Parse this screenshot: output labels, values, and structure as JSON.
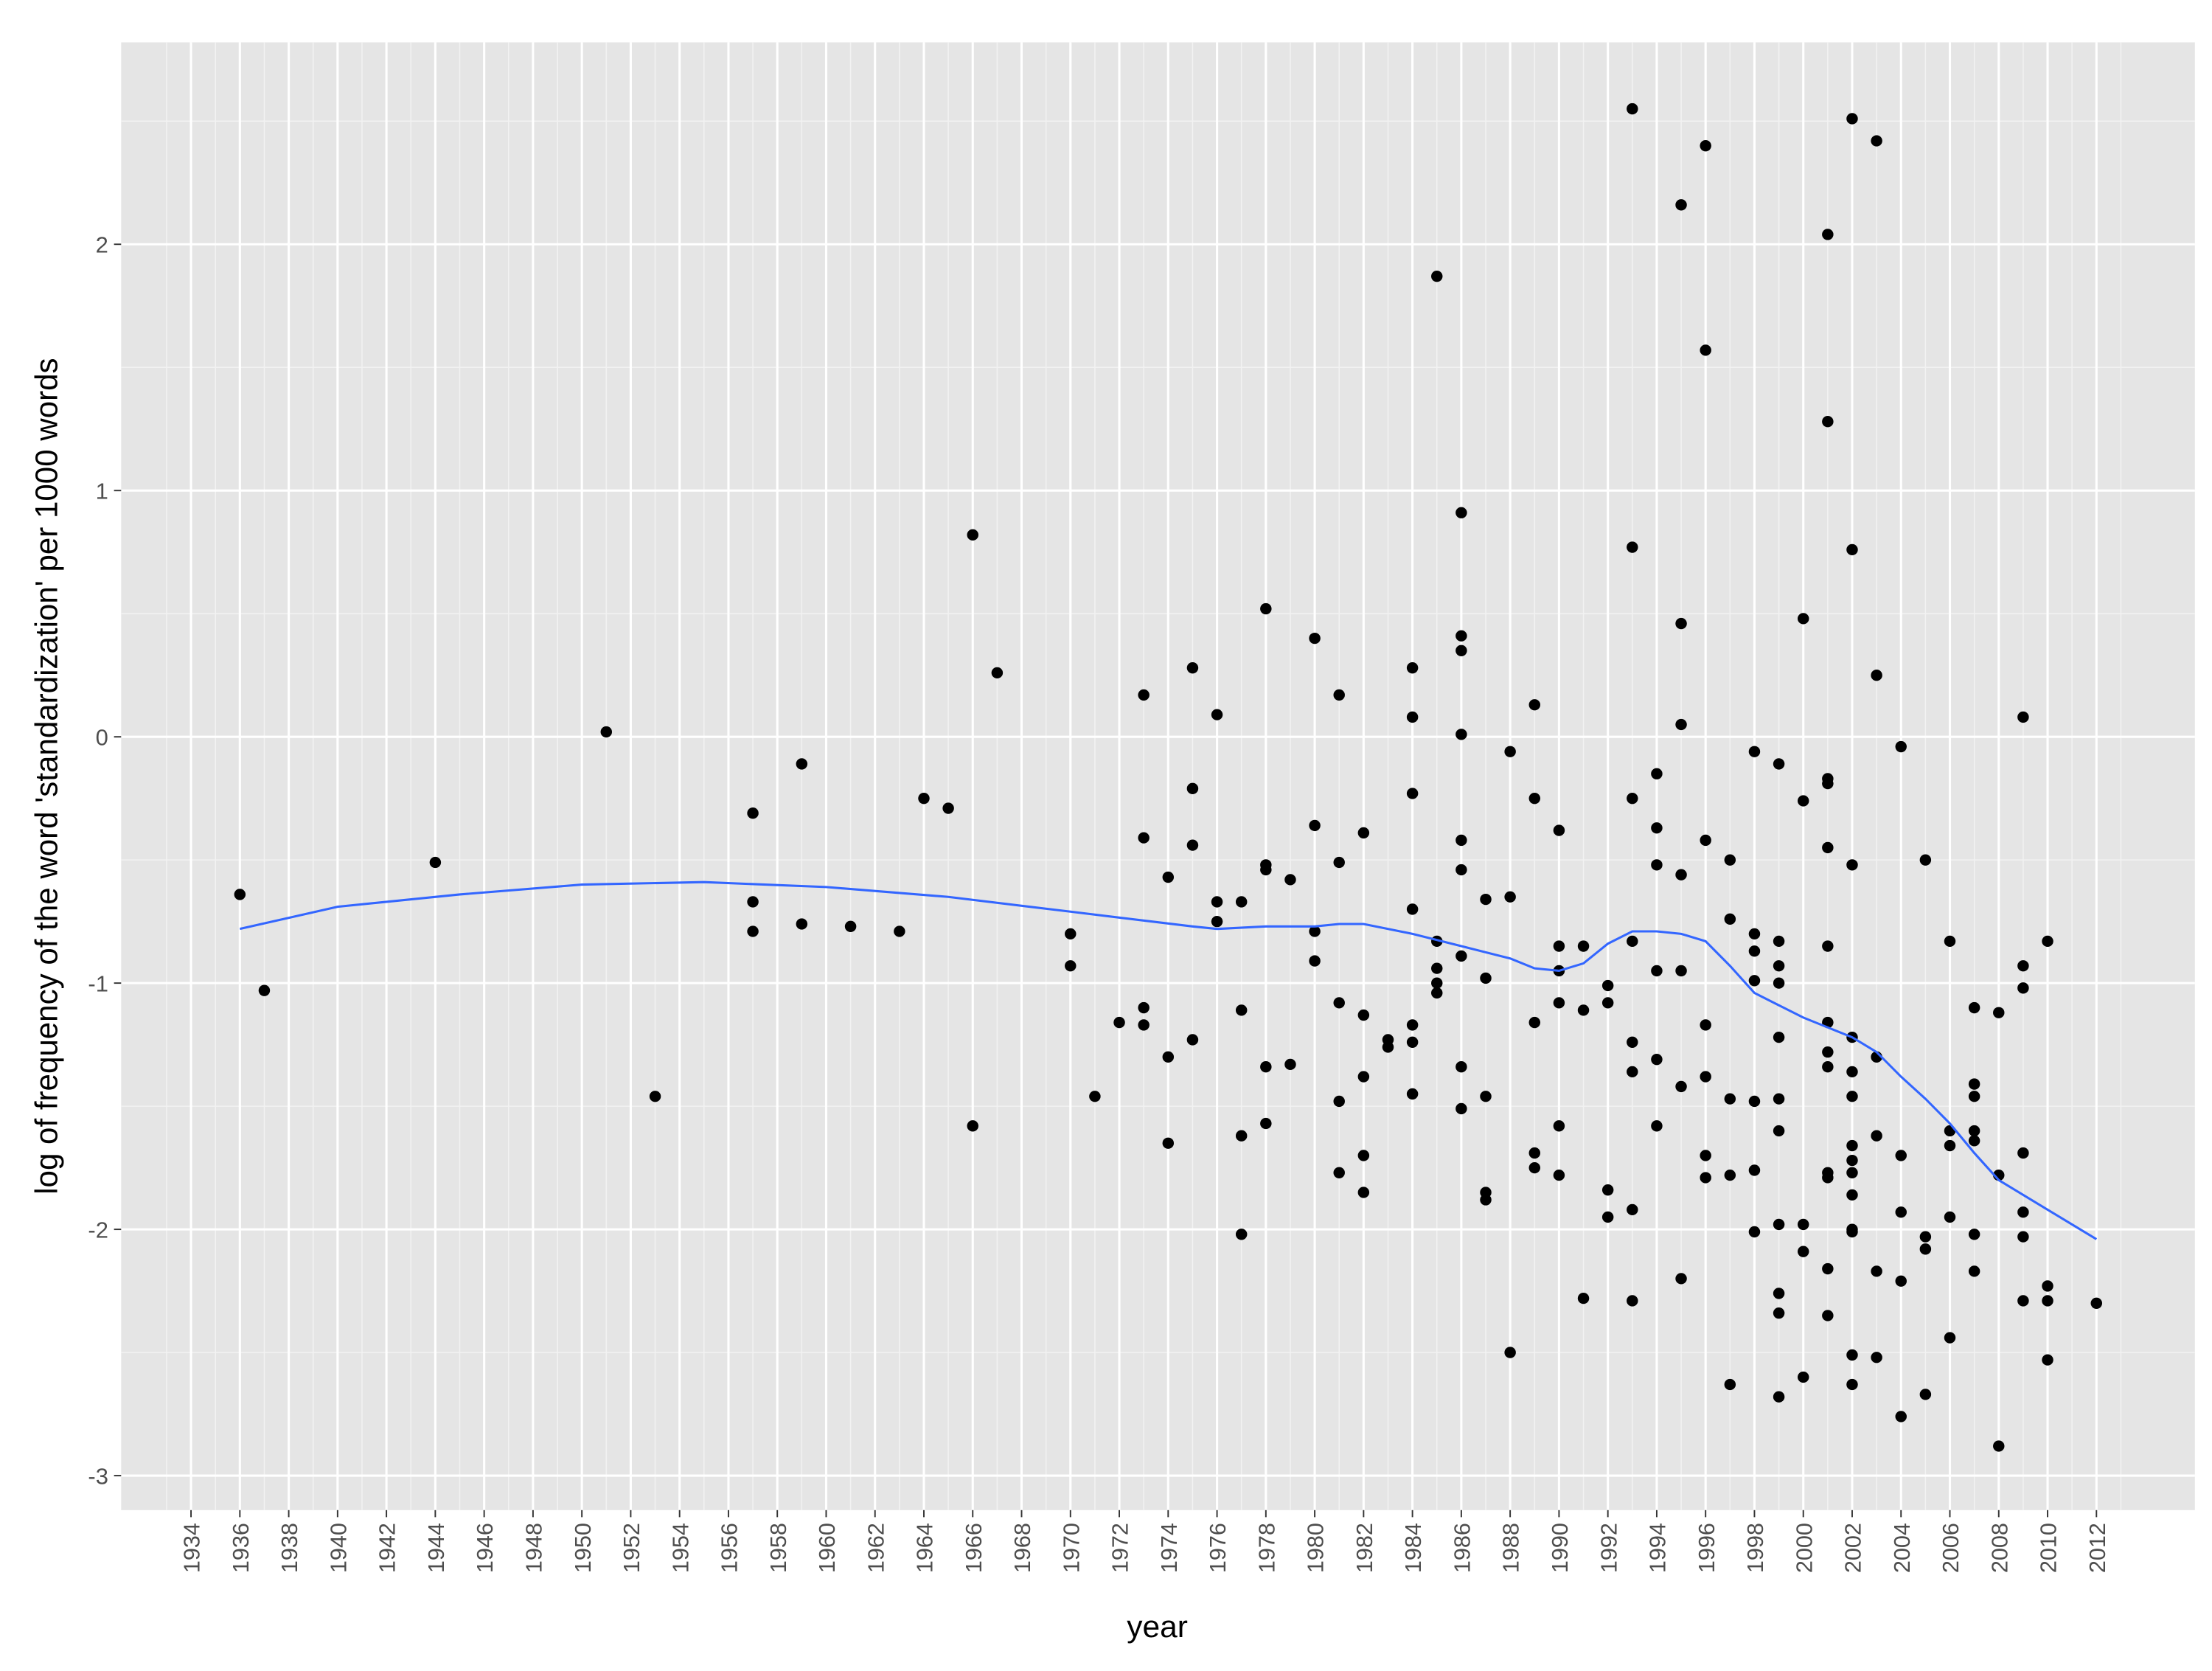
{
  "chart_data": {
    "type": "scatter",
    "x_label": "year",
    "y_label": "log of frequency of the word 'standardization' per 1000 words",
    "xlim": [
      1931.14,
      2016.03
    ],
    "ylim": [
      -3.14,
      2.82
    ],
    "xticks": [
      1934,
      1936,
      1938,
      1940,
      1942,
      1944,
      1946,
      1948,
      1950,
      1952,
      1954,
      1956,
      1958,
      1960,
      1962,
      1964,
      1966,
      1968,
      1970,
      1972,
      1974,
      1976,
      1978,
      1980,
      1982,
      1984,
      1986,
      1988,
      1990,
      1992,
      1994,
      1996,
      1998,
      2000,
      2002,
      2004,
      2006,
      2008,
      2010,
      2012
    ],
    "yticks": [
      -3,
      -2,
      -1,
      0,
      1,
      2
    ],
    "grid": true,
    "series": [
      {
        "type": "scatter",
        "color": "#000000",
        "x": [
          1936,
          1937,
          1944,
          1951,
          1953,
          1957,
          1957,
          1957,
          1959,
          1959,
          1961,
          1963,
          1964,
          1965,
          1966,
          1966,
          1967,
          1970,
          1970,
          1971,
          1972,
          1973,
          1973,
          1973,
          1973,
          1974,
          1974,
          1974,
          1975,
          1975,
          1975,
          1975,
          1976,
          1976,
          1976,
          1977,
          1977,
          1977,
          1977,
          1978,
          1978,
          1978,
          1978,
          1978,
          1979,
          1979,
          1980,
          1980,
          1980,
          1980,
          1981,
          1981,
          1981,
          1981,
          1981,
          1982,
          1982,
          1982,
          1982,
          1982,
          1983,
          1983,
          1984,
          1984,
          1984,
          1984,
          1984,
          1984,
          1984,
          1985,
          1985,
          1985,
          1985,
          1985,
          1986,
          1986,
          1986,
          1986,
          1986,
          1986,
          1986,
          1986,
          1986,
          1987,
          1987,
          1987,
          1987,
          1987,
          1988,
          1988,
          1988,
          1989,
          1989,
          1989,
          1989,
          1989,
          1990,
          1990,
          1990,
          1990,
          1990,
          1990,
          1991,
          1991,
          1991,
          1992,
          1992,
          1992,
          1992,
          1993,
          1993,
          1993,
          1993,
          1993,
          1993,
          1993,
          1993,
          1994,
          1994,
          1994,
          1994,
          1994,
          1994,
          1995,
          1995,
          1995,
          1995,
          1995,
          1995,
          1995,
          1996,
          1996,
          1996,
          1996,
          1996,
          1996,
          1996,
          1997,
          1997,
          1997,
          1997,
          1997,
          1998,
          1998,
          1998,
          1998,
          1998,
          1998,
          1998,
          1999,
          1999,
          1999,
          1999,
          1999,
          1999,
          1999,
          1999,
          1999,
          1999,
          1999,
          2000,
          2000,
          2000,
          2000,
          2000,
          2001,
          2001,
          2001,
          2001,
          2001,
          2001,
          2001,
          2001,
          2001,
          2001,
          2001,
          2001,
          2001,
          2002,
          2002,
          2002,
          2002,
          2002,
          2002,
          2002,
          2002,
          2002,
          2002,
          2002,
          2002,
          2002,
          2002,
          2003,
          2003,
          2003,
          2003,
          2003,
          2003,
          2004,
          2004,
          2004,
          2004,
          2004,
          2005,
          2005,
          2005,
          2005,
          2006,
          2006,
          2006,
          2006,
          2006,
          2007,
          2007,
          2007,
          2007,
          2007,
          2007,
          2007,
          2008,
          2008,
          2008,
          2009,
          2009,
          2009,
          2009,
          2009,
          2009,
          2009,
          2010,
          2010,
          2010,
          2010,
          2012
        ],
        "y": [
          -0.64,
          -1.03,
          -0.51,
          0.02,
          -1.46,
          -0.31,
          -0.67,
          -0.79,
          -0.11,
          -0.76,
          -0.77,
          -0.79,
          -0.25,
          -0.29,
          0.82,
          -1.58,
          0.26,
          -0.8,
          -0.93,
          -1.46,
          -1.16,
          0.17,
          -0.41,
          -1.1,
          -1.17,
          -0.57,
          -1.3,
          -1.65,
          0.28,
          -0.21,
          -0.44,
          -1.23,
          0.09,
          -0.67,
          -0.75,
          -0.67,
          -1.11,
          -1.62,
          -2.02,
          0.52,
          -0.52,
          -0.54,
          -1.34,
          -1.57,
          -0.58,
          -1.33,
          0.4,
          -0.36,
          -0.79,
          -0.91,
          0.17,
          -0.51,
          -1.08,
          -1.48,
          -1.77,
          -0.39,
          -1.13,
          -1.38,
          -1.7,
          -1.85,
          -1.23,
          -1.26,
          0.28,
          0.08,
          -0.23,
          -0.7,
          -1.17,
          -1.24,
          -1.45,
          1.87,
          -0.83,
          -0.94,
          -1.0,
          -1.04,
          0.91,
          0.41,
          0.35,
          0.01,
          -0.42,
          -0.54,
          -0.89,
          -1.34,
          -1.51,
          -0.66,
          -0.98,
          -1.46,
          -1.85,
          -1.88,
          -0.06,
          -0.65,
          -2.5,
          0.13,
          -0.25,
          -1.16,
          -1.69,
          -1.75,
          -0.38,
          -0.85,
          -0.95,
          -1.08,
          -1.58,
          -1.78,
          -0.85,
          -1.11,
          -2.28,
          -1.01,
          -1.08,
          -1.84,
          -1.95,
          2.55,
          0.77,
          -0.25,
          -0.83,
          -1.24,
          -1.36,
          -1.92,
          -2.29,
          -0.15,
          -0.37,
          -0.52,
          -0.95,
          -1.31,
          -1.58,
          2.16,
          0.46,
          0.05,
          -0.56,
          -0.95,
          -1.42,
          -2.2,
          2.4,
          1.57,
          -0.42,
          -1.17,
          -1.38,
          -1.7,
          -1.79,
          -0.5,
          -0.74,
          -1.47,
          -1.78,
          -2.63,
          -0.06,
          -0.8,
          -0.87,
          -0.99,
          -1.48,
          -1.76,
          -2.01,
          -0.11,
          -0.83,
          -0.93,
          -1.0,
          -1.22,
          -1.47,
          -1.6,
          -1.98,
          -2.26,
          -2.34,
          -2.68,
          0.48,
          -0.26,
          -1.98,
          -2.09,
          -2.6,
          2.04,
          1.28,
          -0.17,
          -0.19,
          -0.45,
          -0.85,
          -1.16,
          -1.28,
          -1.34,
          -1.77,
          -1.79,
          -2.16,
          -2.35,
          2.51,
          0.76,
          -0.52,
          -1.22,
          -1.36,
          -1.46,
          -1.66,
          -1.72,
          -1.77,
          -1.86,
          -2.0,
          -2.01,
          -2.51,
          -2.63,
          2.42,
          0.25,
          -1.3,
          -1.62,
          -2.17,
          -2.52,
          -0.04,
          -1.7,
          -1.93,
          -2.21,
          -2.76,
          -0.5,
          -2.03,
          -2.08,
          -2.67,
          -0.83,
          -1.6,
          -1.66,
          -1.95,
          -2.44,
          -1.1,
          -1.41,
          -1.46,
          -1.6,
          -1.64,
          -2.02,
          -2.17,
          -1.12,
          -1.78,
          -2.88,
          0.08,
          -0.93,
          -1.02,
          -1.69,
          -1.93,
          -2.03,
          -2.29,
          -0.83,
          -2.23,
          -2.29,
          -2.53,
          -2.3
        ]
      },
      {
        "type": "line",
        "color": "#3366ff",
        "x": [
          1936,
          1940,
          1945,
          1950,
          1955,
          1960,
          1965,
          1970,
          1975,
          1976,
          1978,
          1980,
          1981,
          1982,
          1984,
          1986,
          1988,
          1989,
          1990,
          1991,
          1992,
          1993,
          1994,
          1995,
          1996,
          1997,
          1998,
          1999,
          2000,
          2001,
          2002,
          2003,
          2004,
          2005,
          2006,
          2007,
          2008,
          2010,
          2012
        ],
        "y": [
          -0.78,
          -0.69,
          -0.64,
          -0.6,
          -0.59,
          -0.61,
          -0.65,
          -0.71,
          -0.77,
          -0.78,
          -0.77,
          -0.77,
          -0.76,
          -0.76,
          -0.8,
          -0.85,
          -0.9,
          -0.94,
          -0.95,
          -0.92,
          -0.84,
          -0.79,
          -0.79,
          -0.8,
          -0.83,
          -0.93,
          -1.04,
          -1.09,
          -1.14,
          -1.18,
          -1.22,
          -1.28,
          -1.38,
          -1.47,
          -1.57,
          -1.69,
          -1.8,
          -1.92,
          -2.04
        ]
      }
    ]
  }
}
